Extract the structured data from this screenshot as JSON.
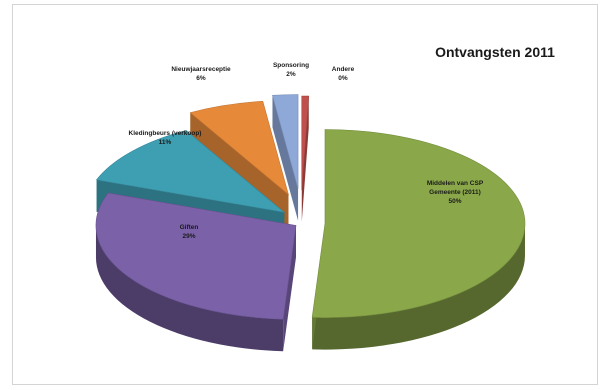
{
  "chart_data": {
    "type": "pie",
    "style": "3d-exploded",
    "title": "Ontvangsten 2011",
    "slices": [
      {
        "label": "Middelen van CSP Gemeente (2011)",
        "value": 50,
        "value_label": "50%",
        "color": "#8aa84a"
      },
      {
        "label": "Giften",
        "value": 29,
        "value_label": "29%",
        "color": "#7a61a8"
      },
      {
        "label": "Kledingbeurs (verkoop)",
        "value": 11,
        "value_label": "11%",
        "color": "#3e9fb3"
      },
      {
        "label": "Nieuwjaarsreceptie",
        "value": 6,
        "value_label": "6%",
        "color": "#e68a3a"
      },
      {
        "label": "Sponsoring",
        "value": 2,
        "value_label": "2%",
        "color": "#8ea8d8"
      },
      {
        "label": "Andere",
        "value": 0,
        "value_label": "0%",
        "color": "#c0504d"
      }
    ],
    "legend": "none"
  }
}
